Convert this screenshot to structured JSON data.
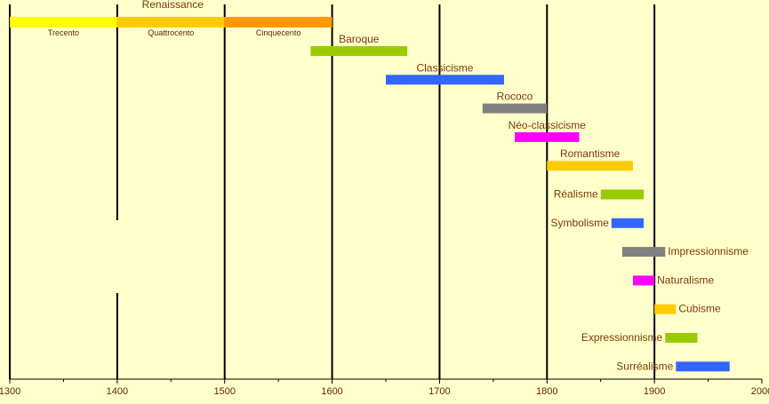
{
  "chart_data": {
    "type": "bar",
    "orientation": "horizontal-timeline",
    "xlim": [
      1300,
      2000
    ],
    "x_ticks": [
      1300,
      1400,
      1500,
      1600,
      1700,
      1800,
      1900,
      2000
    ],
    "header_label": "Renaissance",
    "renaissance_segments": [
      {
        "name": "Trecento",
        "start": 1300,
        "end": 1400,
        "color": "#ffff00"
      },
      {
        "name": "Quattrocento",
        "start": 1400,
        "end": 1500,
        "color": "#ffcc00"
      },
      {
        "name": "Cinquecento",
        "start": 1500,
        "end": 1600,
        "color": "#ff9900"
      }
    ],
    "movements": [
      {
        "name": "Baroque",
        "start": 1580,
        "end": 1670,
        "color": "#99cc00",
        "label_pos": "above"
      },
      {
        "name": "Classicisme",
        "start": 1650,
        "end": 1760,
        "color": "#3366ff",
        "label_pos": "above"
      },
      {
        "name": "Rococo",
        "start": 1740,
        "end": 1800,
        "color": "#808080",
        "label_pos": "above"
      },
      {
        "name": "Néo-classicisme",
        "start": 1770,
        "end": 1830,
        "color": "#ff00ff",
        "label_pos": "above"
      },
      {
        "name": "Romantisme",
        "start": 1800,
        "end": 1880,
        "color": "#ffcc00",
        "label_pos": "above"
      },
      {
        "name": "Réalisme",
        "start": 1850,
        "end": 1890,
        "color": "#99cc00",
        "label_pos": "left"
      },
      {
        "name": "Symbolisme",
        "start": 1860,
        "end": 1890,
        "color": "#3366ff",
        "label_pos": "left"
      },
      {
        "name": "Impressionnisme",
        "start": 1870,
        "end": 1910,
        "color": "#808080",
        "label_pos": "right"
      },
      {
        "name": "Naturalisme",
        "start": 1880,
        "end": 1900,
        "color": "#ff00ff",
        "label_pos": "right"
      },
      {
        "name": "Cubisme",
        "start": 1900,
        "end": 1920,
        "color": "#ffcc00",
        "label_pos": "right"
      },
      {
        "name": "Expressionnisme",
        "start": 1910,
        "end": 1940,
        "color": "#99cc00",
        "label_pos": "left"
      },
      {
        "name": "Surréalisme",
        "start": 1920,
        "end": 1970,
        "color": "#3366ff",
        "label_pos": "left"
      }
    ],
    "grid": true
  }
}
